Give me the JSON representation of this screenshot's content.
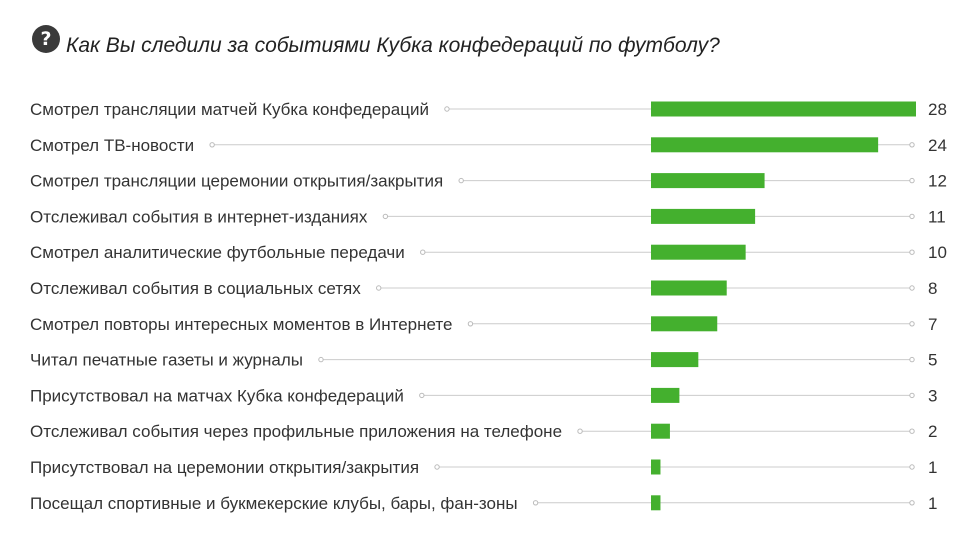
{
  "header": {
    "icon": "question-circle-icon",
    "title": "Как Вы следили за событиями Кубка конфедераций по футболу?"
  },
  "colors": {
    "bar": "#44b02e",
    "leader": "#cccccc",
    "text": "#333333",
    "icon_bg": "#3a3a3a"
  },
  "chart_data": {
    "type": "bar",
    "orientation": "horizontal",
    "title": "Как Вы следили за событиями Кубка конфедераций по футболу?",
    "categories": [
      "Смотрел трансляции матчей Кубка конфедераций",
      "Смотрел ТВ-новости",
      "Смотрел трансляции церемонии открытия/закрытия",
      "Отслеживал события в интернет-изданиях",
      "Смотрел аналитические футбольные передачи",
      "Отслеживал события в социальных сетях",
      "Смотрел повторы интересных моментов в Интернете",
      "Читал печатные газеты и журналы",
      "Присутствовал на матчах Кубка конфедераций",
      "Отслеживал события через профильные приложения на телефоне",
      "Присутствовал на церемонии открытия/закрытия",
      "Посещал спортивные и букмекерские клубы, бары, фан-зоны"
    ],
    "values": [
      28,
      24,
      12,
      11,
      10,
      8,
      7,
      5,
      3,
      2,
      1,
      1
    ],
    "xlim": [
      0,
      28
    ],
    "grid": false,
    "legend": "none",
    "data_labels": true
  }
}
